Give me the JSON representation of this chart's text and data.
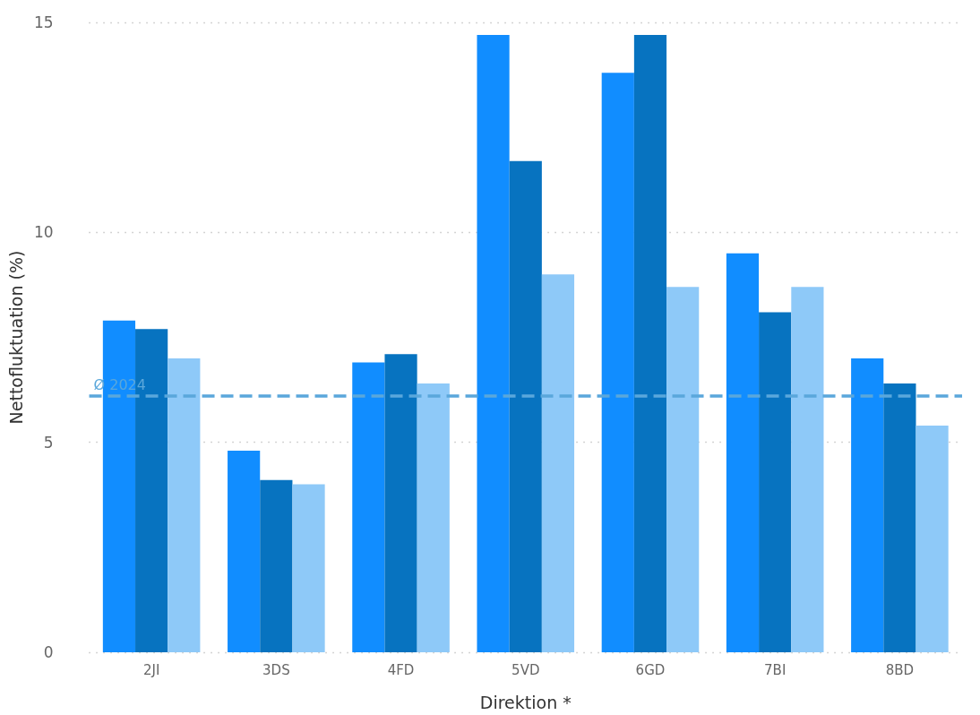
{
  "chart_data": {
    "type": "bar",
    "xlabel": "Direktion *",
    "ylabel": "Nettofluktuation (%)",
    "categories": [
      "2JI",
      "3DS",
      "4FD",
      "5VD",
      "6GD",
      "7BI",
      "8BD"
    ],
    "series": [
      {
        "color": "#118dff",
        "values": [
          7.9,
          4.8,
          6.9,
          14.7,
          13.8,
          9.5,
          7.0
        ]
      },
      {
        "color": "#0773c0",
        "values": [
          7.7,
          4.1,
          7.1,
          11.7,
          14.7,
          8.1,
          6.4
        ]
      },
      {
        "color": "#8ec9f8",
        "values": [
          7.0,
          4.0,
          6.4,
          9.0,
          8.7,
          8.7,
          5.4
        ]
      }
    ],
    "ylim": [
      0,
      15
    ],
    "yticks": [
      0,
      5,
      10,
      15
    ],
    "grid": "y",
    "ref_lines": [
      {
        "axis": "y",
        "value": 6.1,
        "label": "Ø 2024",
        "color": "#5aa7db",
        "line_style": "dashed"
      }
    ]
  }
}
